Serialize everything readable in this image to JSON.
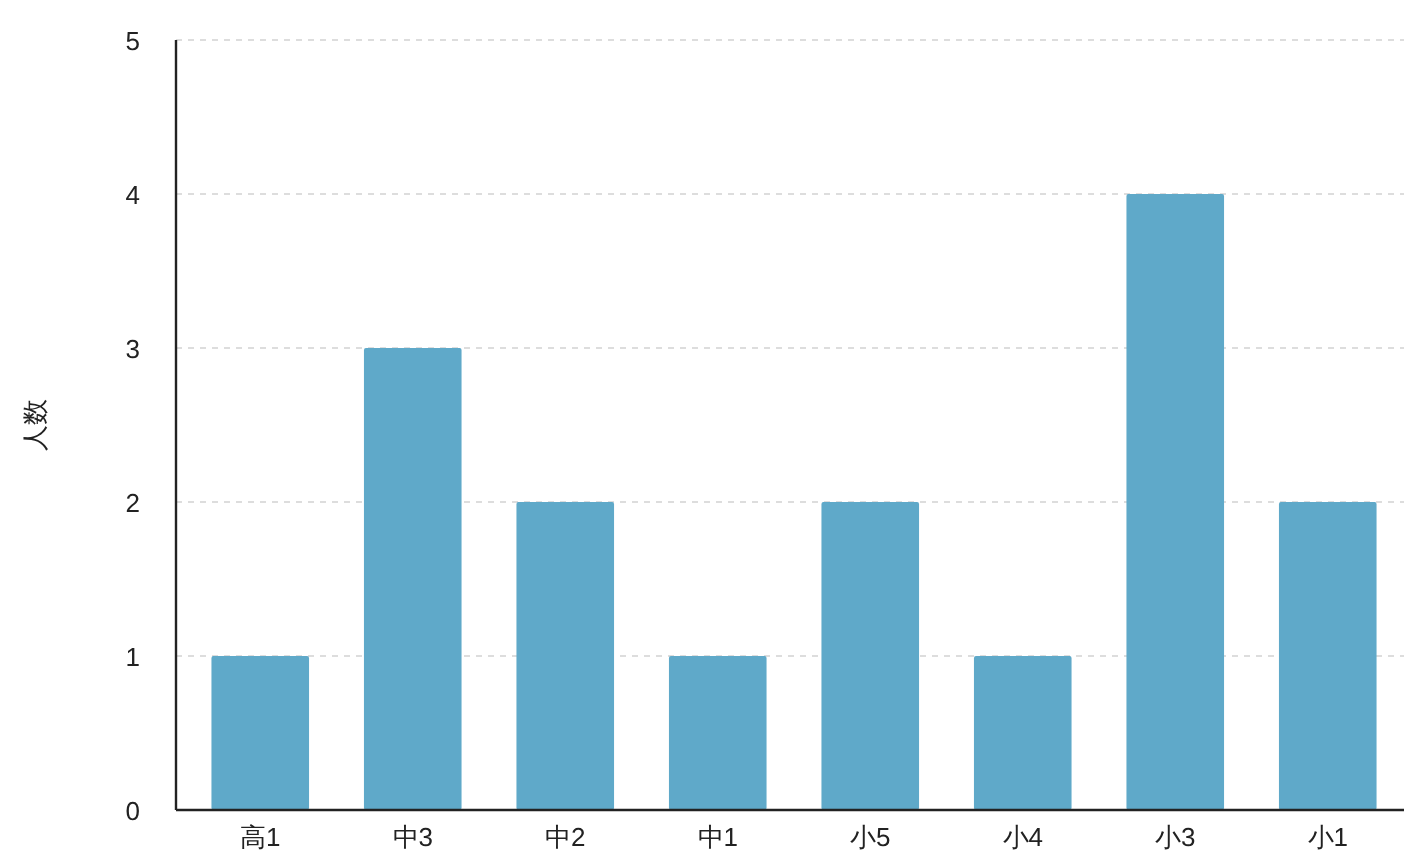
{
  "chart_data": {
    "type": "bar",
    "ylabel": "人数",
    "categories": [
      "高1",
      "中3",
      "中2",
      "中1",
      "小5",
      "小4",
      "小3",
      "小1"
    ],
    "values": [
      1,
      3,
      2,
      1,
      2,
      1,
      4,
      2
    ],
    "color": "#5fa9c9",
    "ylim": [
      0,
      5
    ],
    "yticks": [
      0,
      1,
      2,
      3,
      4,
      5
    ],
    "grid": "y"
  }
}
